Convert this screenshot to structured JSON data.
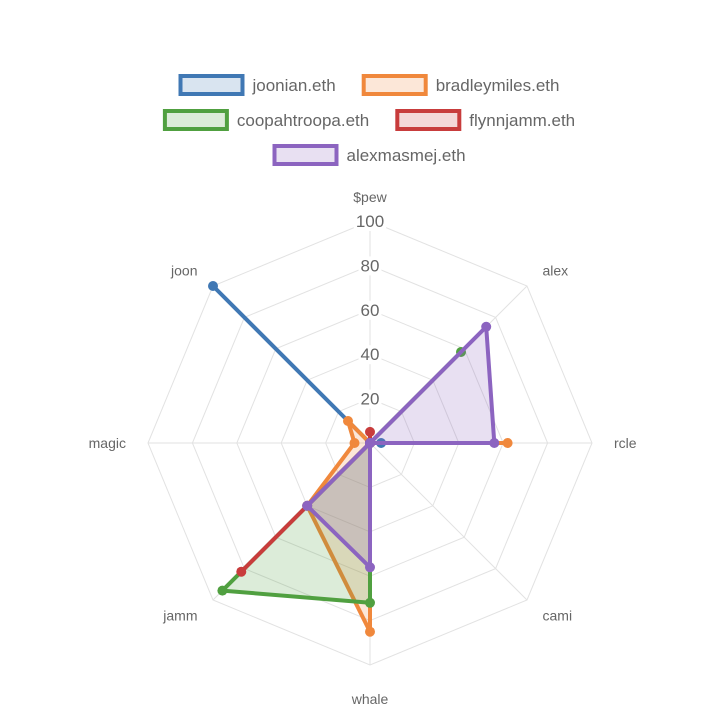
{
  "chart_data": {
    "type": "radar",
    "axes": [
      "$pew",
      "alex",
      "rcle",
      "cami",
      "whale",
      "jamm",
      "magic",
      "joon"
    ],
    "ticks": [
      "20",
      "40",
      "60",
      "80",
      "100"
    ],
    "rmax": 100,
    "series": [
      {
        "name": "joonian.eth",
        "color": "#4078b4",
        "fill": "rgba(64,120,180,0.2)",
        "values": [
          0,
          0,
          5,
          0,
          0,
          40,
          0,
          100
        ]
      },
      {
        "name": "bradleymiles.eth",
        "color": "#f0883c",
        "fill": "rgba(240,136,60,0.2)",
        "values": [
          0,
          0,
          62,
          0,
          85,
          40,
          7,
          14
        ]
      },
      {
        "name": "coopahtroopa.eth",
        "color": "#50a040",
        "fill": "rgba(80,160,64,0.2)",
        "values": [
          0,
          58,
          0,
          0,
          72,
          94,
          0,
          0
        ]
      },
      {
        "name": "flynnjamm.eth",
        "color": "#c83c3c",
        "fill": "rgba(200,60,60,0.2)",
        "values": [
          5,
          0,
          0,
          0,
          0,
          82,
          0,
          0
        ]
      },
      {
        "name": "alexmasmej.eth",
        "color": "#8c64c0",
        "fill": "rgba(140,100,192,0.2)",
        "values": [
          0,
          74,
          56,
          0,
          56,
          40,
          0,
          0
        ]
      }
    ]
  }
}
